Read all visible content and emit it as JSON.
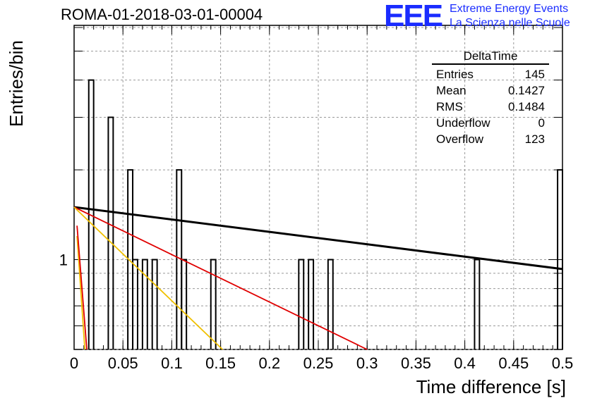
{
  "header": {
    "run_title": "ROMA-01-2018-03-01-00004",
    "logo_mark": "EEE",
    "logo_line1": "Extreme Energy Events",
    "logo_line2": "La Scienza nelle Scuole"
  },
  "colors": {
    "logo": "#1a2cff",
    "histogram": "#000000",
    "fit_black": "#000000",
    "fit_red": "#e00000",
    "fit_yellow": "#f0c000"
  },
  "stats": {
    "title": "DeltaTime",
    "rows": [
      {
        "label": "Entries",
        "value": "145"
      },
      {
        "label": "Mean",
        "value": "0.1427"
      },
      {
        "label": "RMS",
        "value": "0.1484"
      },
      {
        "label": "Underflow",
        "value": "0"
      },
      {
        "label": "Overflow",
        "value": "123"
      }
    ]
  },
  "chart_data": {
    "type": "histogram",
    "xlabel": "Time difference [s]",
    "ylabel": "Entries/bin",
    "xlim": [
      0,
      0.5
    ],
    "ylim": [
      0.5,
      6.1
    ],
    "y_scale": "log",
    "grid": true,
    "x_ticks": [
      "0",
      "0.05",
      "0.1",
      "0.15",
      "0.2",
      "0.25",
      "0.3",
      "0.35",
      "0.4",
      "0.45",
      "0.5"
    ],
    "y_tick_labels": [
      {
        "value": 1,
        "label": "1"
      }
    ],
    "bin_width": 0.005,
    "bins": [
      {
        "x0": 0.015,
        "count": 4
      },
      {
        "x0": 0.035,
        "count": 3
      },
      {
        "x0": 0.055,
        "count": 2
      },
      {
        "x0": 0.06,
        "count": 1
      },
      {
        "x0": 0.07,
        "count": 1
      },
      {
        "x0": 0.08,
        "count": 1
      },
      {
        "x0": 0.105,
        "count": 2
      },
      {
        "x0": 0.11,
        "count": 1
      },
      {
        "x0": 0.14,
        "count": 1
      },
      {
        "x0": 0.23,
        "count": 1
      },
      {
        "x0": 0.24,
        "count": 1
      },
      {
        "x0": 0.26,
        "count": 1
      },
      {
        "x0": 0.41,
        "count": 1
      },
      {
        "x0": 0.495,
        "count": 2
      }
    ],
    "fit_curves": [
      {
        "color": "black",
        "points": [
          [
            0,
            1.5
          ],
          [
            0.5,
            0.93
          ]
        ]
      },
      {
        "color": "red",
        "points": [
          [
            0,
            1.5
          ],
          [
            0.3,
            0.5
          ]
        ]
      },
      {
        "color": "yellow",
        "points": [
          [
            0,
            1.5
          ],
          [
            0.152,
            0.5
          ]
        ]
      },
      {
        "color": "yellow",
        "points": [
          [
            0.003,
            1.2
          ],
          [
            0.011,
            0.5
          ]
        ]
      },
      {
        "color": "red",
        "points": [
          [
            0.003,
            1.3
          ],
          [
            0.013,
            0.5
          ]
        ]
      }
    ]
  }
}
